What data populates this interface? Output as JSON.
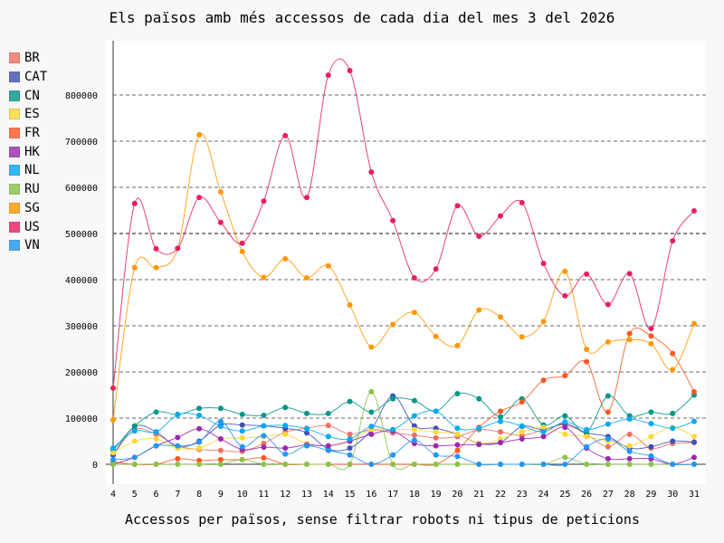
{
  "chart_data": {
    "type": "line",
    "title": "Els països amb més accessos de cada dia del mes 3 del 2026",
    "xlabel": "Accessos per països, sense filtrar robots ni tipus de peticions",
    "ylabel": "",
    "ylim": [
      0,
      900000
    ],
    "yticks": [
      "0",
      "100000",
      "200000",
      "300000",
      "400000",
      "500000",
      "600000",
      "700000",
      "800000"
    ],
    "x": [
      4,
      5,
      6,
      7,
      8,
      9,
      10,
      11,
      12,
      13,
      14,
      15,
      16,
      17,
      18,
      19,
      20,
      21,
      22,
      23,
      24,
      25,
      26,
      27,
      28,
      29,
      30,
      31
    ],
    "legend_position": "left",
    "grid": true,
    "series": [
      {
        "name": "BR",
        "color": "#f0705f",
        "values": [
          20000,
          75000,
          65000,
          40000,
          32000,
          30000,
          28000,
          45000,
          70000,
          78000,
          84000,
          65000,
          75000,
          68000,
          63000,
          57000,
          60000,
          75000,
          70000,
          62000,
          75000,
          85000,
          65000,
          38000,
          65000,
          35000,
          45000,
          47000
        ]
      },
      {
        "name": "CAT",
        "color": "#3f51b5",
        "values": [
          20000,
          82000,
          70000,
          38000,
          50000,
          85000,
          85000,
          83000,
          78000,
          68000,
          33000,
          35000,
          75000,
          148000,
          83000,
          78000,
          65000,
          45000,
          47000,
          82000,
          75000,
          88000,
          68000,
          60000,
          35000,
          38000,
          50000,
          48000
        ]
      },
      {
        "name": "CN",
        "color": "#009688",
        "values": [
          30000,
          83000,
          113000,
          108000,
          121000,
          121000,
          108000,
          106000,
          123000,
          110000,
          110000,
          136000,
          113000,
          142000,
          138000,
          115000,
          153000,
          142000,
          103000,
          142000,
          85000,
          105000,
          70000,
          148000,
          105000,
          113000,
          110000,
          150000
        ]
      },
      {
        "name": "ES",
        "color": "#fdd835",
        "values": [
          25000,
          50000,
          55000,
          35000,
          35000,
          55000,
          57000,
          60000,
          65000,
          45000,
          40000,
          50000,
          75000,
          75000,
          75000,
          70000,
          65000,
          45000,
          55000,
          70000,
          80000,
          65000,
          60000,
          50000,
          40000,
          60000,
          80000,
          60000
        ]
      },
      {
        "name": "FR",
        "color": "#ff5722",
        "values": [
          5000,
          0,
          0,
          12000,
          8000,
          10000,
          10000,
          14000,
          0,
          0,
          0,
          0,
          0,
          0,
          0,
          0,
          30000,
          80000,
          115000,
          135000,
          182000,
          192000,
          222000,
          113000,
          283000,
          278000,
          240000,
          157000
        ]
      },
      {
        "name": "HK",
        "color": "#9c27b0",
        "values": [
          0,
          15000,
          40000,
          58000,
          77000,
          55000,
          32000,
          37000,
          35000,
          42000,
          40000,
          50000,
          65000,
          72000,
          45000,
          40000,
          42000,
          43000,
          47000,
          55000,
          60000,
          80000,
          35000,
          12000,
          12000,
          12000,
          0,
          15000
        ]
      },
      {
        "name": "NL",
        "color": "#03a9f4",
        "values": [
          35000,
          72000,
          70000,
          107000,
          106000,
          82000,
          72000,
          83000,
          84000,
          77000,
          60000,
          55000,
          82000,
          75000,
          105000,
          115000,
          78000,
          78000,
          93000,
          83000,
          70000,
          92000,
          75000,
          87000,
          98000,
          88000,
          78000,
          93000
        ]
      },
      {
        "name": "RU",
        "color": "#8bc34a",
        "values": [
          0,
          0,
          0,
          0,
          0,
          0,
          10000,
          0,
          0,
          0,
          0,
          0,
          157000,
          0,
          0,
          0,
          0,
          0,
          0,
          0,
          0,
          15000,
          0,
          0,
          0,
          0,
          0,
          0
        ]
      },
      {
        "name": "SG",
        "color": "#ff9800",
        "values": [
          96000,
          426000,
          426000,
          468000,
          714000,
          590000,
          461000,
          405000,
          445000,
          404000,
          430000,
          345000,
          254000,
          303000,
          329000,
          277000,
          257000,
          334000,
          319000,
          276000,
          309000,
          418000,
          249000,
          265000,
          270000,
          261000,
          205000,
          305000
        ]
      },
      {
        "name": "US",
        "color": "#e91e63",
        "values": [
          165000,
          565000,
          467000,
          468000,
          578000,
          524000,
          479000,
          570000,
          712000,
          578000,
          843000,
          853000,
          633000,
          528000,
          404000,
          423000,
          560000,
          494000,
          538000,
          567000,
          435000,
          365000,
          412000,
          346000,
          413000,
          294000,
          484000,
          549000
        ]
      },
      {
        "name": "VN",
        "color": "#2196f3",
        "values": [
          10000,
          15000,
          40000,
          40000,
          48000,
          93000,
          38000,
          62000,
          22000,
          40000,
          30000,
          20000,
          0,
          20000,
          52000,
          20000,
          17000,
          0,
          0,
          0,
          0,
          0,
          38000,
          55000,
          28000,
          18000,
          0,
          0
        ]
      }
    ]
  }
}
